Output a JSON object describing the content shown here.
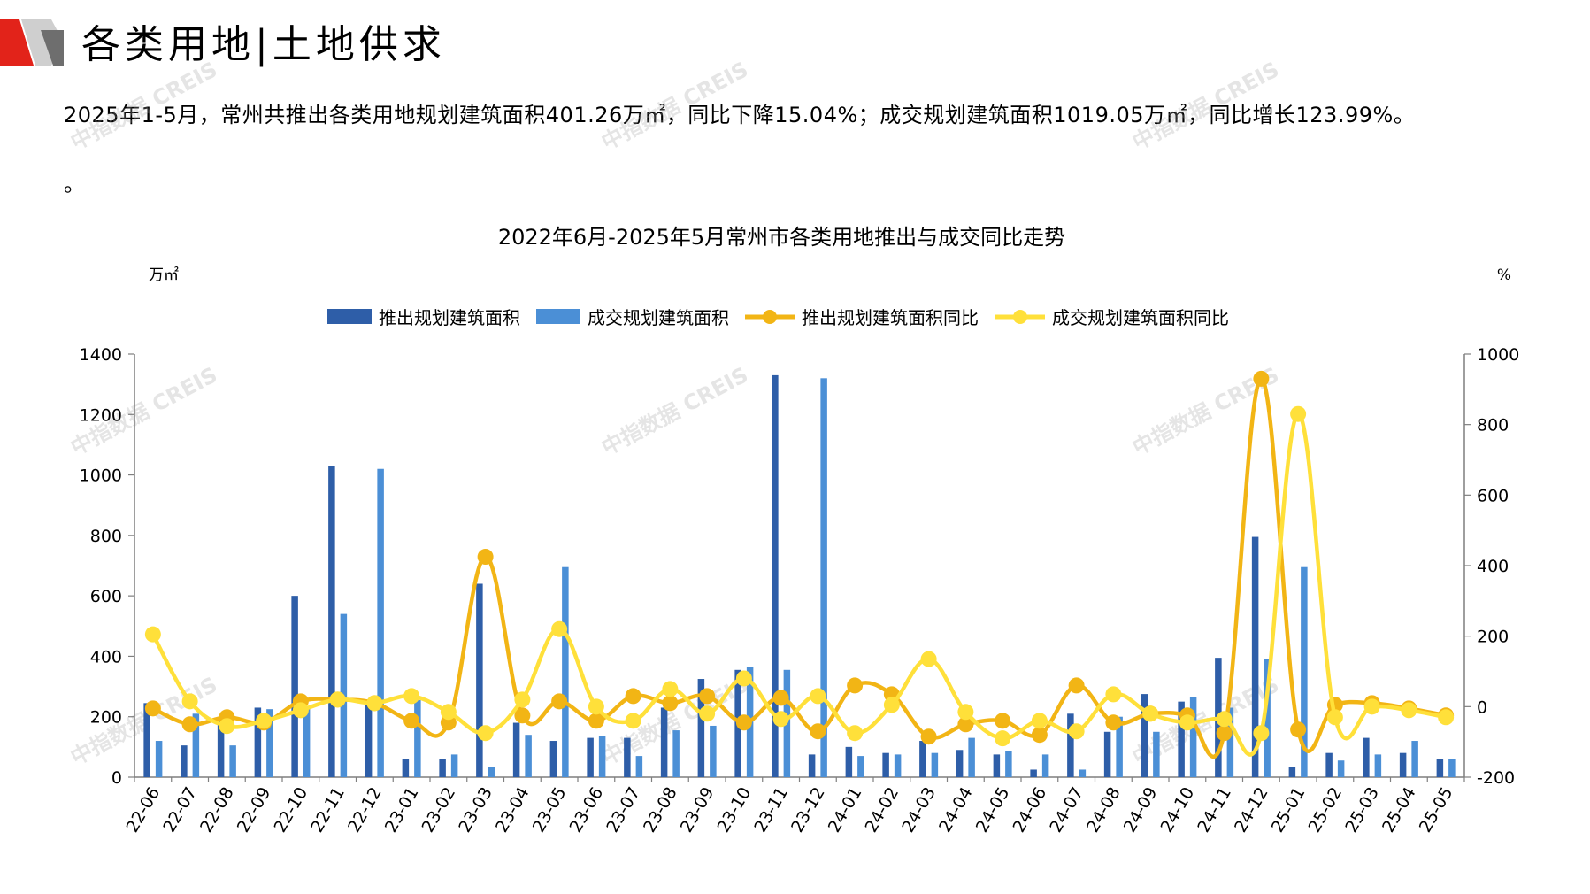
{
  "header": {
    "title": "各类用地|土地供求",
    "logo_colors": [
      "#e2231a",
      "#c8c8c8",
      "#6e6e6e"
    ]
  },
  "summary": {
    "text": "2025年1-5月，常州共推出各类用地规划建筑面积401.26万㎡，同比下降15.04%；成交规划建筑面积1019.05万㎡，同比增长123.99%。",
    "trailing": "。"
  },
  "watermark_text": "中指数据 CREIS",
  "chart_data": {
    "type": "bar",
    "title": "2022年6月-2025年5月常州市各类用地推出与成交同比走势",
    "y_left_label": "万㎡",
    "y_right_label": "%",
    "y_left_range": [
      0,
      1400
    ],
    "y_left_ticks": [
      "0",
      "200",
      "400",
      "600",
      "800",
      "1000",
      "1200",
      "1400"
    ],
    "y_right_range": [
      -200,
      1000
    ],
    "y_right_ticks": [
      "-200",
      "0",
      "200",
      "400",
      "600",
      "800",
      "1000"
    ],
    "legend_position": "top",
    "grid": false,
    "categories": [
      "22-06",
      "22-07",
      "22-08",
      "22-09",
      "22-10",
      "22-11",
      "22-12",
      "23-01",
      "23-02",
      "23-03",
      "23-04",
      "23-05",
      "23-06",
      "23-07",
      "23-08",
      "23-09",
      "23-10",
      "23-11",
      "23-12",
      "24-01",
      "24-02",
      "24-03",
      "24-04",
      "24-05",
      "24-06",
      "24-07",
      "24-08",
      "24-09",
      "24-10",
      "24-11",
      "24-12",
      "25-01",
      "25-02",
      "25-03",
      "25-04",
      "25-05"
    ],
    "series": [
      {
        "name": "推出规划建筑面积",
        "kind": "bar",
        "axis": "left",
        "color": "#2e5ea8",
        "values": [
          245,
          105,
          185,
          230,
          600,
          1030,
          240,
          60,
          60,
          640,
          180,
          120,
          130,
          130,
          230,
          325,
          355,
          1330,
          75,
          100,
          80,
          120,
          90,
          75,
          25,
          210,
          150,
          275,
          250,
          395,
          795,
          35,
          80,
          130,
          80,
          60
        ]
      },
      {
        "name": "成交规划建筑面积",
        "kind": "bar",
        "axis": "left",
        "color": "#4b8fd6",
        "values": [
          120,
          210,
          105,
          225,
          230,
          540,
          1020,
          255,
          75,
          35,
          140,
          695,
          135,
          70,
          155,
          170,
          365,
          355,
          1320,
          70,
          75,
          80,
          130,
          85,
          75,
          25,
          200,
          150,
          265,
          230,
          390,
          695,
          55,
          75,
          120,
          60
        ]
      },
      {
        "name": "推出规划建筑面积同比",
        "kind": "line",
        "axis": "right",
        "color": "#f2b515",
        "values": [
          -5,
          -50,
          -30,
          -45,
          15,
          20,
          10,
          -40,
          -45,
          425,
          -25,
          15,
          -40,
          30,
          10,
          30,
          -45,
          25,
          -70,
          60,
          35,
          -85,
          -50,
          -40,
          -80,
          60,
          -45,
          -20,
          -25,
          -75,
          930,
          -65,
          5,
          10,
          -5,
          -25
        ]
      },
      {
        "name": "成交规划建筑面积同比",
        "kind": "line",
        "axis": "right",
        "color": "#ffe03a",
        "values": [
          205,
          15,
          -55,
          -40,
          -10,
          20,
          10,
          30,
          -15,
          -75,
          20,
          220,
          0,
          -40,
          50,
          -20,
          80,
          -35,
          30,
          -75,
          5,
          135,
          -15,
          -90,
          -40,
          -70,
          35,
          -20,
          -45,
          -35,
          -75,
          830,
          -30,
          0,
          -10,
          -30
        ]
      }
    ]
  }
}
